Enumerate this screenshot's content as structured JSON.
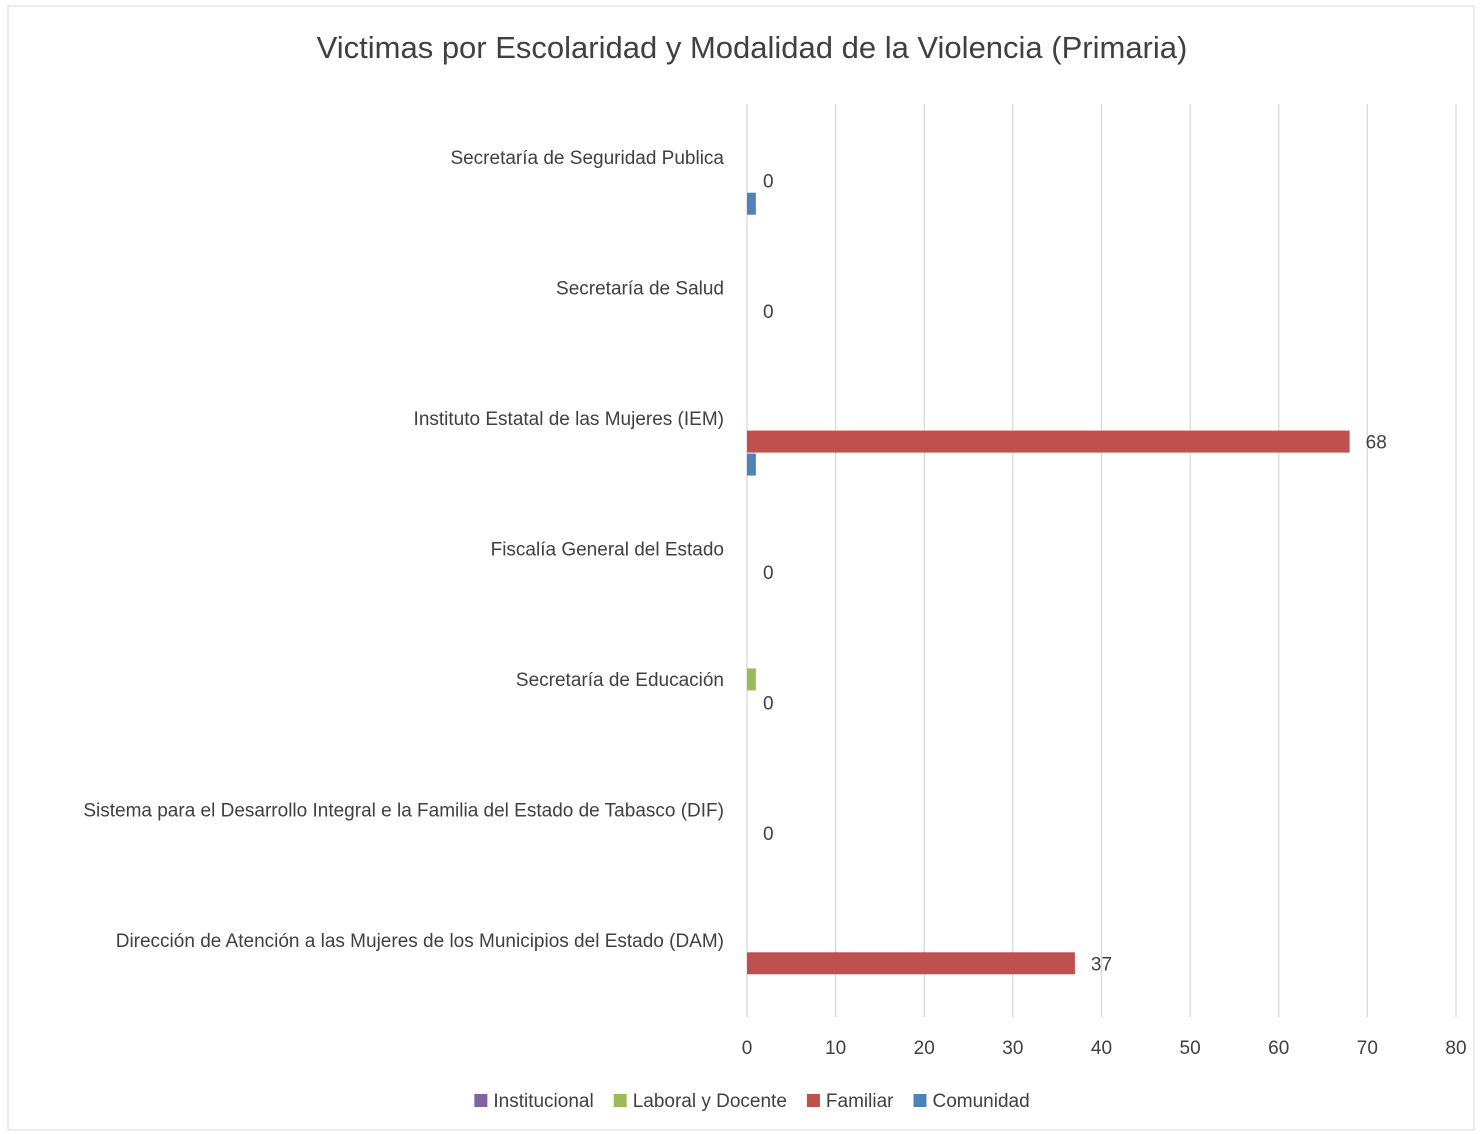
{
  "chart_data": {
    "type": "hbar",
    "title": "Victimas por Escolaridad y Modalidad de la Violencia (Primaria)",
    "categories": [
      "Secretaría de Seguridad Publica",
      "Secretaría de Salud",
      "Instituto Estatal de las Mujeres (IEM)",
      "Fiscalía General del Estado",
      "Secretaría de Educación",
      "Sistema para el Desarrollo Integral e la Familia del Estado de Tabasco (DIF)",
      "Dirección de Atención a las Mujeres de los Municipios del Estado (DAM)"
    ],
    "series": [
      {
        "name": "Institucional",
        "color": "#8064a2",
        "values": [
          0,
          0,
          0,
          0,
          0,
          0,
          0
        ],
        "show_labels": false
      },
      {
        "name": "Laboral y Docente",
        "color": "#9bbb59",
        "values": [
          0,
          0,
          0,
          0,
          1,
          0,
          0
        ],
        "show_labels": false
      },
      {
        "name": "Familiar",
        "color": "#c0504d",
        "values": [
          0,
          0,
          68,
          0,
          0,
          0,
          37
        ],
        "show_labels": true
      },
      {
        "name": "Comunidad",
        "color": "#4f81bd",
        "values": [
          1,
          0,
          1,
          0,
          0,
          0,
          0
        ],
        "show_labels": false
      }
    ],
    "xlim": [
      0,
      80
    ],
    "xticks": [
      0,
      10,
      20,
      30,
      40,
      50,
      60,
      70,
      80
    ],
    "grid": true,
    "legend": "bottom"
  }
}
